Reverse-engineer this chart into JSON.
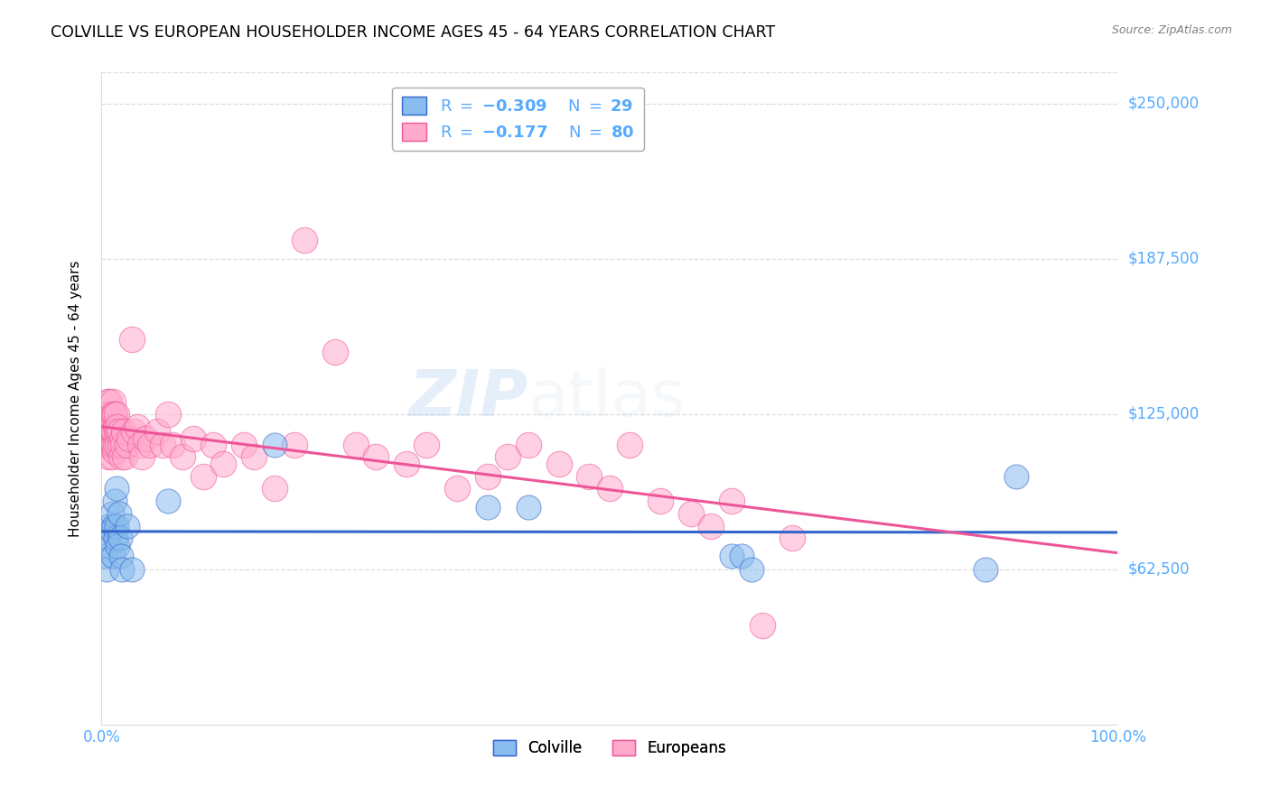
{
  "title": "COLVILLE VS EUROPEAN HOUSEHOLDER INCOME AGES 45 - 64 YEARS CORRELATION CHART",
  "source": "Source: ZipAtlas.com",
  "ylabel": "Householder Income Ages 45 - 64 years",
  "ytick_labels": [
    "$62,500",
    "$125,000",
    "$187,500",
    "$250,000"
  ],
  "ytick_values": [
    62500,
    125000,
    187500,
    250000
  ],
  "ymin": 0,
  "ymax": 262500,
  "xmin": 0.0,
  "xmax": 1.0,
  "watermark_zip": "ZIP",
  "watermark_atlas": "atlas",
  "colville_color": "#88bbee",
  "europeans_color": "#ffaacc",
  "colville_line_color": "#3366cc",
  "europeans_line_color": "#ee5599",
  "grid_color": "#dddddd",
  "tick_color": "#55aaff",
  "colville_x": [
    0.003,
    0.005,
    0.006,
    0.007,
    0.008,
    0.009,
    0.01,
    0.011,
    0.012,
    0.013,
    0.014,
    0.015,
    0.015,
    0.016,
    0.017,
    0.018,
    0.019,
    0.02,
    0.025,
    0.03,
    0.065,
    0.17,
    0.38,
    0.42,
    0.62,
    0.63,
    0.64,
    0.87,
    0.9
  ],
  "colville_y": [
    68000,
    62500,
    75000,
    80000,
    72000,
    78000,
    85000,
    68000,
    80000,
    90000,
    75000,
    95000,
    80000,
    72000,
    85000,
    75000,
    68000,
    62500,
    80000,
    62500,
    90000,
    112500,
    87500,
    87500,
    68000,
    68000,
    62500,
    62500,
    100000
  ],
  "europeans_x": [
    0.003,
    0.004,
    0.005,
    0.005,
    0.006,
    0.006,
    0.007,
    0.007,
    0.007,
    0.008,
    0.008,
    0.008,
    0.009,
    0.009,
    0.01,
    0.01,
    0.01,
    0.011,
    0.011,
    0.011,
    0.012,
    0.012,
    0.012,
    0.013,
    0.013,
    0.014,
    0.014,
    0.015,
    0.015,
    0.016,
    0.016,
    0.017,
    0.018,
    0.019,
    0.02,
    0.021,
    0.022,
    0.023,
    0.025,
    0.027,
    0.03,
    0.032,
    0.035,
    0.038,
    0.04,
    0.043,
    0.048,
    0.055,
    0.06,
    0.065,
    0.07,
    0.08,
    0.09,
    0.1,
    0.11,
    0.12,
    0.14,
    0.15,
    0.17,
    0.19,
    0.2,
    0.23,
    0.25,
    0.27,
    0.3,
    0.32,
    0.35,
    0.38,
    0.4,
    0.42,
    0.45,
    0.48,
    0.5,
    0.52,
    0.55,
    0.58,
    0.6,
    0.62,
    0.65,
    0.68
  ],
  "europeans_y": [
    112500,
    118000,
    125000,
    112500,
    130000,
    115000,
    125000,
    118000,
    108000,
    130000,
    120000,
    112500,
    118000,
    112500,
    125000,
    108000,
    120000,
    130000,
    112500,
    118000,
    125000,
    112500,
    118000,
    125000,
    110000,
    120000,
    112500,
    125000,
    118000,
    112500,
    120000,
    118000,
    112500,
    108000,
    115000,
    112500,
    118000,
    108000,
    112500,
    115000,
    155000,
    118000,
    120000,
    112500,
    108000,
    115000,
    112500,
    118000,
    112500,
    125000,
    112500,
    108000,
    115000,
    100000,
    112500,
    105000,
    112500,
    108000,
    95000,
    112500,
    195000,
    150000,
    112500,
    108000,
    105000,
    112500,
    95000,
    100000,
    108000,
    112500,
    105000,
    100000,
    95000,
    112500,
    90000,
    85000,
    80000,
    90000,
    40000,
    75000
  ]
}
